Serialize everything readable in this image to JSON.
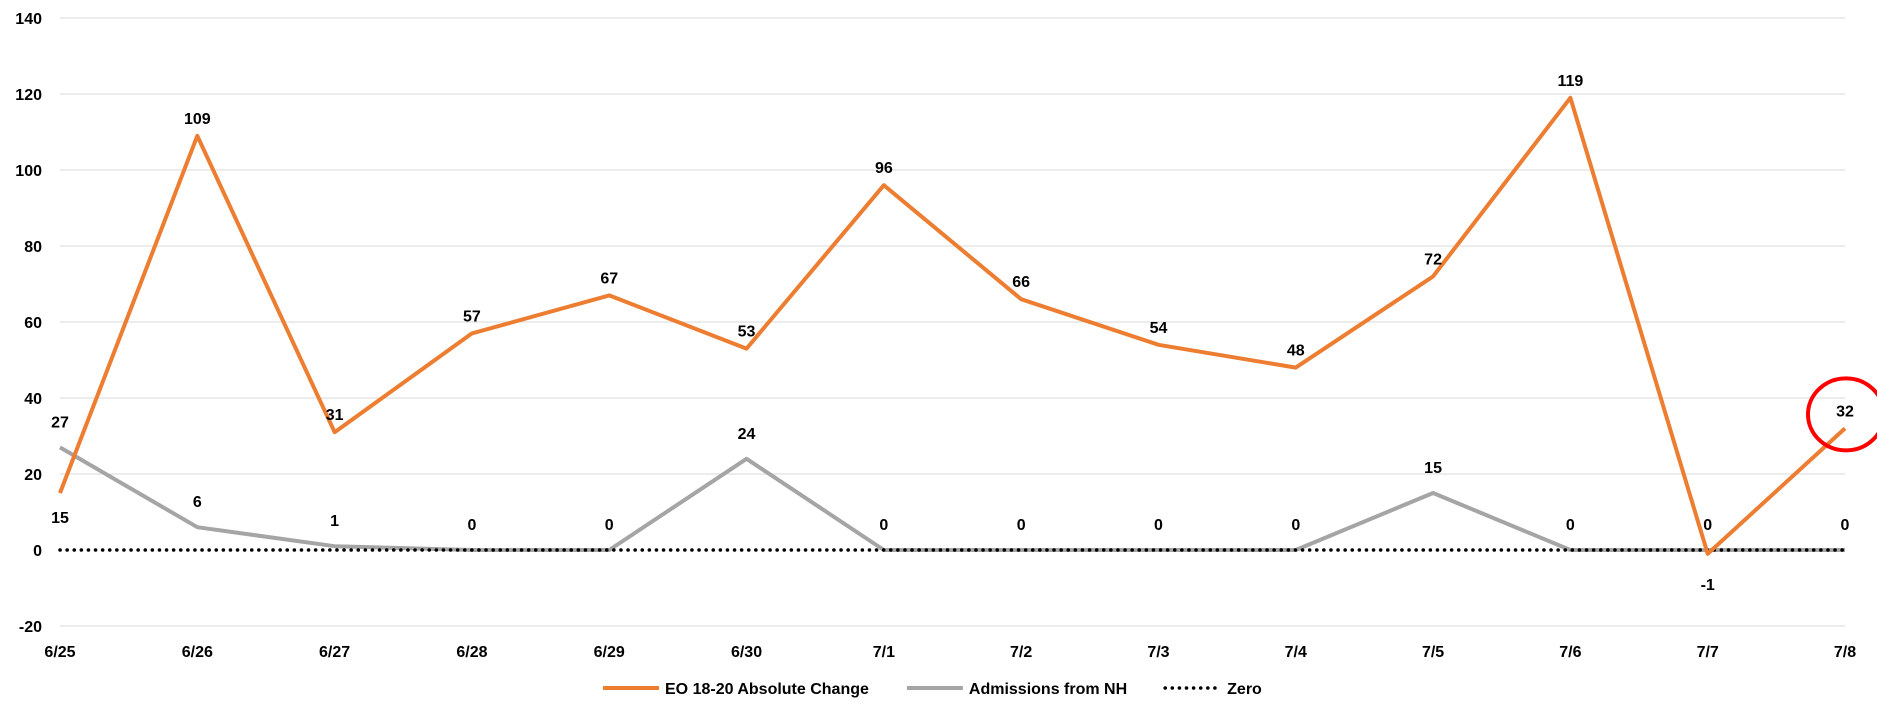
{
  "chart_data": {
    "type": "line",
    "categories": [
      "6/25",
      "6/26",
      "6/27",
      "6/28",
      "6/29",
      "6/30",
      "7/1",
      "7/2",
      "7/3",
      "7/4",
      "7/5",
      "7/6",
      "7/7",
      "7/8"
    ],
    "ylim": [
      -20,
      140
    ],
    "yticks": [
      -20,
      0,
      20,
      40,
      60,
      80,
      100,
      120,
      140
    ],
    "grid": true,
    "legend_position": "bottom",
    "series": [
      {
        "name": "EO 18-20 Absolute Change",
        "color": "#ed7d31",
        "style": "solid",
        "values": [
          15,
          109,
          31,
          57,
          67,
          53,
          96,
          66,
          54,
          48,
          72,
          119,
          -1,
          32
        ]
      },
      {
        "name": "Admissions from NH",
        "color": "#a5a5a5",
        "style": "solid",
        "values": [
          27,
          6,
          1,
          0,
          0,
          24,
          0,
          0,
          0,
          0,
          15,
          0,
          0,
          0
        ]
      },
      {
        "name": "Zero",
        "color": "#000000",
        "style": "dotted",
        "values": [
          0,
          0,
          0,
          0,
          0,
          0,
          0,
          0,
          0,
          0,
          0,
          0,
          0,
          0
        ]
      }
    ],
    "annotation": {
      "type": "circle",
      "color": "#ff0000",
      "category": "7/8",
      "series": "EO 18-20 Absolute Change"
    }
  }
}
